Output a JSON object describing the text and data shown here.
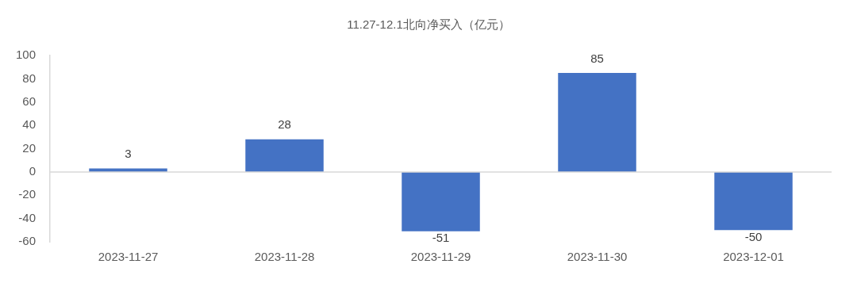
{
  "chart_data": {
    "type": "bar",
    "title": "11.27-12.1北向净买入（亿元）",
    "categories": [
      "2023-11-27",
      "2023-11-28",
      "2023-11-29",
      "2023-11-30",
      "2023-12-01"
    ],
    "values": [
      3,
      28,
      -51,
      85,
      -50
    ],
    "color": "#4472c4",
    "ylim": [
      -60,
      100
    ],
    "yticks": [
      -60,
      -40,
      -20,
      0,
      20,
      40,
      60,
      80,
      100
    ],
    "data_labels": true,
    "legend": false
  }
}
